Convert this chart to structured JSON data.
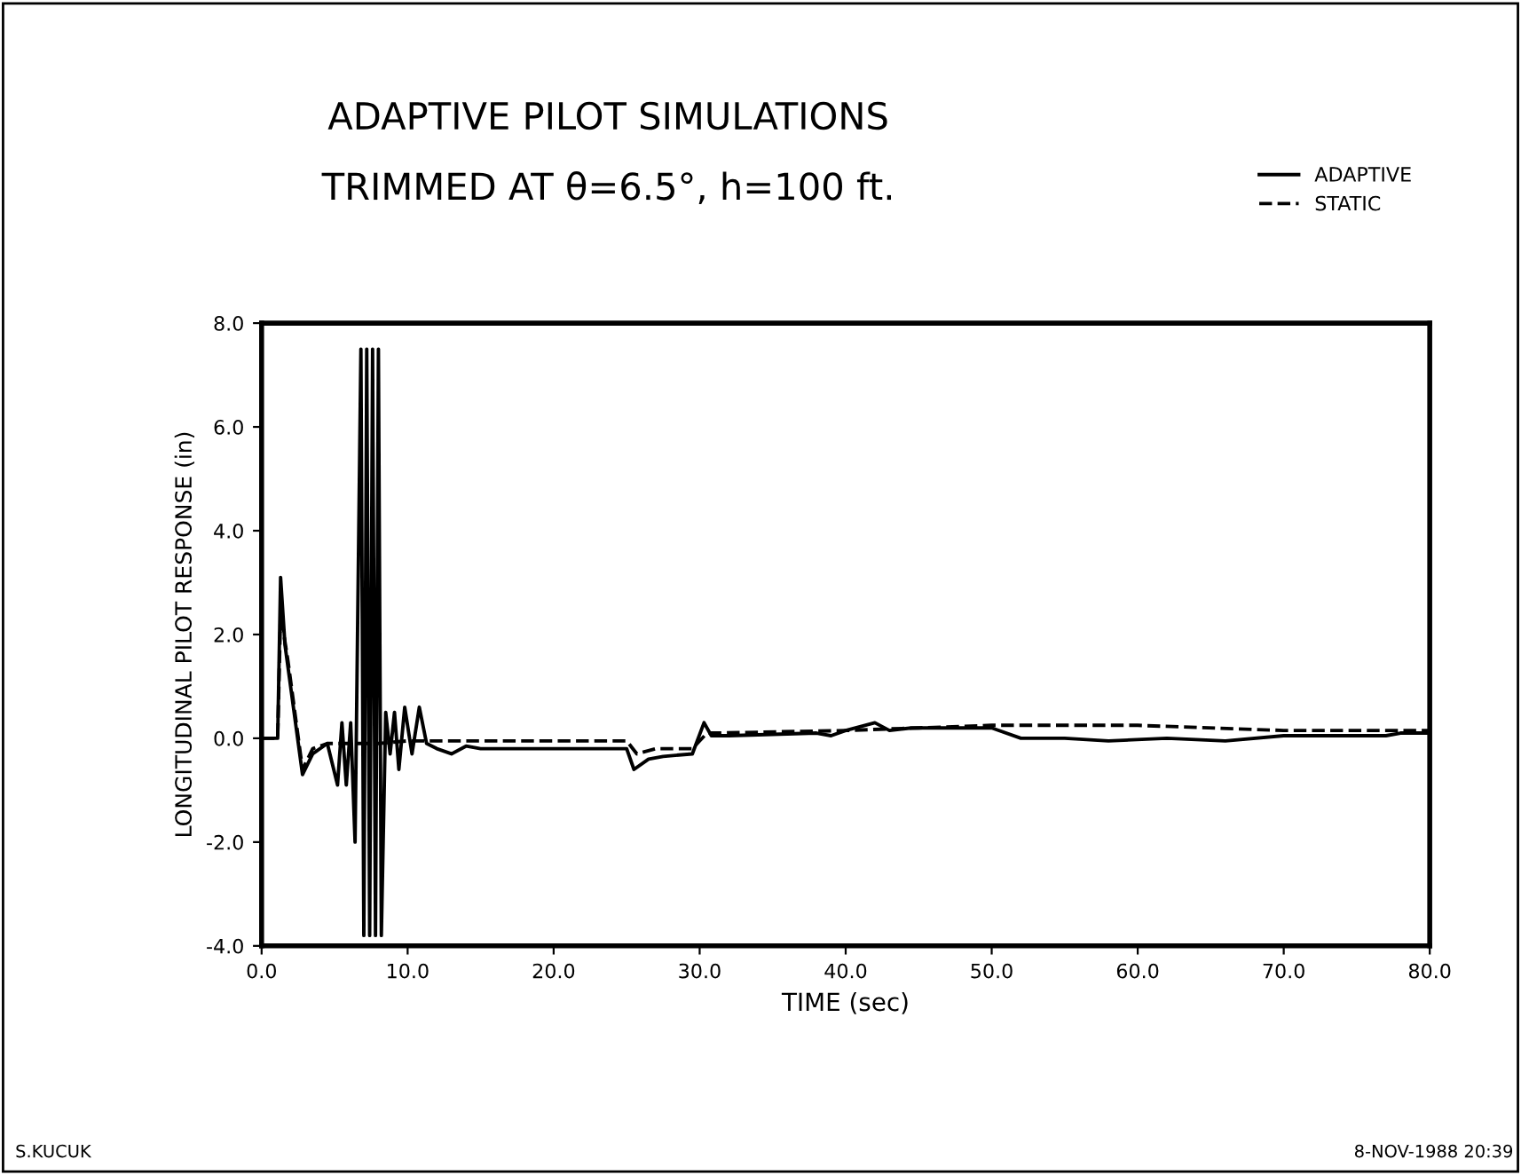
{
  "chart_data": {
    "type": "line",
    "title": "ADAPTIVE PILOT SIMULATIONS",
    "subtitle": "TRIMMED AT θ=6.5°, h=100 ft.",
    "xlabel": "TIME (sec)",
    "ylabel": "LONGITUDINAL PILOT RESPONSE (in)",
    "annotations": [
      "S.KUCUK",
      "8-NOV-1988 20:39"
    ],
    "xlim": [
      0,
      80
    ],
    "ylim": [
      -4,
      8
    ],
    "xticks": [
      {
        "value": 0,
        "label": "0.0"
      },
      {
        "value": 10,
        "label": "10.0"
      },
      {
        "value": 20,
        "label": "20.0"
      },
      {
        "value": 30,
        "label": "30.0"
      },
      {
        "value": 40,
        "label": "40.0"
      },
      {
        "value": 50,
        "label": "50.0"
      },
      {
        "value": 60,
        "label": "60.0"
      },
      {
        "value": 70,
        "label": "70.0"
      },
      {
        "value": 80,
        "label": "80.0"
      }
    ],
    "yticks": [
      {
        "value": -4,
        "label": "-4.0"
      },
      {
        "value": -2,
        "label": "-2.0"
      },
      {
        "value": 0,
        "label": "0.0"
      },
      {
        "value": 2,
        "label": "2.0"
      },
      {
        "value": 4,
        "label": "4.0"
      },
      {
        "value": 6,
        "label": "6.0"
      },
      {
        "value": 8,
        "label": "8.0"
      }
    ],
    "grid": false,
    "legend": "top right",
    "marker": "none",
    "series": [
      {
        "name": "ADAPTIVE",
        "color": "#000000",
        "line_style": "solid",
        "x": [
          0,
          1.1,
          1.3,
          1.6,
          2.8,
          3.5,
          4.5,
          5.2,
          5.5,
          5.8,
          6.1,
          6.4,
          6.8,
          7.0,
          7.2,
          7.4,
          7.6,
          7.8,
          8.0,
          8.2,
          8.5,
          8.8,
          9.1,
          9.4,
          9.8,
          10.3,
          10.8,
          11.3,
          12.0,
          13.0,
          14.0,
          15,
          25,
          25.5,
          26.5,
          27.5,
          29.5,
          30.3,
          30.8,
          32,
          38,
          39,
          40,
          42,
          43,
          44.5,
          50,
          52,
          55,
          58,
          62,
          66,
          70,
          74,
          77,
          78,
          80
        ],
        "values": [
          0,
          0,
          3.1,
          1.8,
          -0.7,
          -0.3,
          -0.1,
          -0.9,
          0.3,
          -0.9,
          0.3,
          -2.0,
          7.5,
          -3.8,
          7.5,
          -3.8,
          7.5,
          -3.8,
          7.5,
          -3.8,
          0.5,
          -0.3,
          0.5,
          -0.6,
          0.6,
          -0.3,
          0.6,
          -0.1,
          -0.2,
          -0.3,
          -0.15,
          -0.2,
          -0.2,
          -0.6,
          -0.4,
          -0.35,
          -0.3,
          0.3,
          0.05,
          0.05,
          0.1,
          0.05,
          0.15,
          0.3,
          0.15,
          0.2,
          0.2,
          0.0,
          0.0,
          -0.05,
          0.0,
          -0.05,
          0.05,
          0.05,
          0.05,
          0.1,
          0.1
        ]
      },
      {
        "name": "STATIC",
        "color": "#000000",
        "line_style": "dashed",
        "x": [
          0,
          1.1,
          1.3,
          1.8,
          2.8,
          3.5,
          4.5,
          6,
          8,
          10,
          11,
          25,
          25.7,
          27,
          29.5,
          30.5,
          31,
          40,
          45,
          50,
          60,
          70,
          80
        ],
        "values": [
          0,
          0,
          2.4,
          1.5,
          -0.6,
          -0.2,
          -0.1,
          -0.1,
          -0.1,
          -0.05,
          -0.05,
          -0.05,
          -0.3,
          -0.2,
          -0.2,
          0.1,
          0.1,
          0.15,
          0.2,
          0.25,
          0.25,
          0.15,
          0.15
        ]
      }
    ]
  }
}
